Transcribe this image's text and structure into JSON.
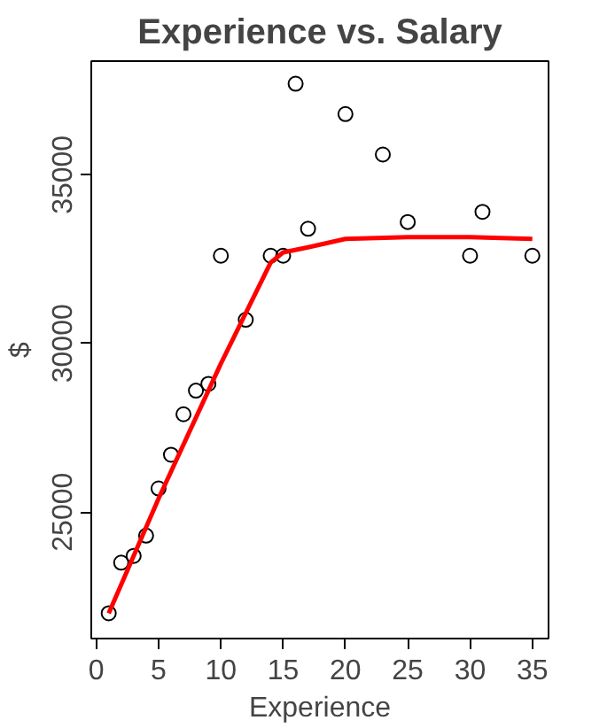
{
  "chart_data": {
    "type": "scatter",
    "title": "Experience vs. Salary",
    "xlabel": "Experience",
    "ylabel": "$",
    "xlim": [
      -0.4,
      36.3
    ],
    "ylim": [
      21250,
      38370
    ],
    "xticks": [
      0,
      5,
      10,
      15,
      20,
      25,
      30,
      35
    ],
    "yticks": [
      25000,
      30000,
      35000
    ],
    "grid": false,
    "series": [
      {
        "type": "scatter",
        "marker": "circle",
        "color": "#000000",
        "x": [
          1,
          2,
          3,
          4,
          5,
          6,
          7,
          8,
          9,
          10,
          12,
          14,
          15,
          16,
          17,
          20,
          23,
          25,
          30,
          31,
          35
        ],
        "values": [
          22000,
          23500,
          23700,
          24300,
          25700,
          26700,
          27900,
          28600,
          28800,
          32600,
          30700,
          32600,
          32600,
          37700,
          33400,
          36800,
          35600,
          33600,
          32600,
          33900,
          32600
        ]
      },
      {
        "type": "line",
        "color": "#ff0000",
        "x": [
          1,
          5,
          10,
          14,
          15,
          17,
          20,
          25,
          30,
          35
        ],
        "values": [
          22000,
          25400,
          29400,
          32400,
          32700,
          32850,
          33100,
          33150,
          33150,
          33100
        ]
      }
    ]
  }
}
